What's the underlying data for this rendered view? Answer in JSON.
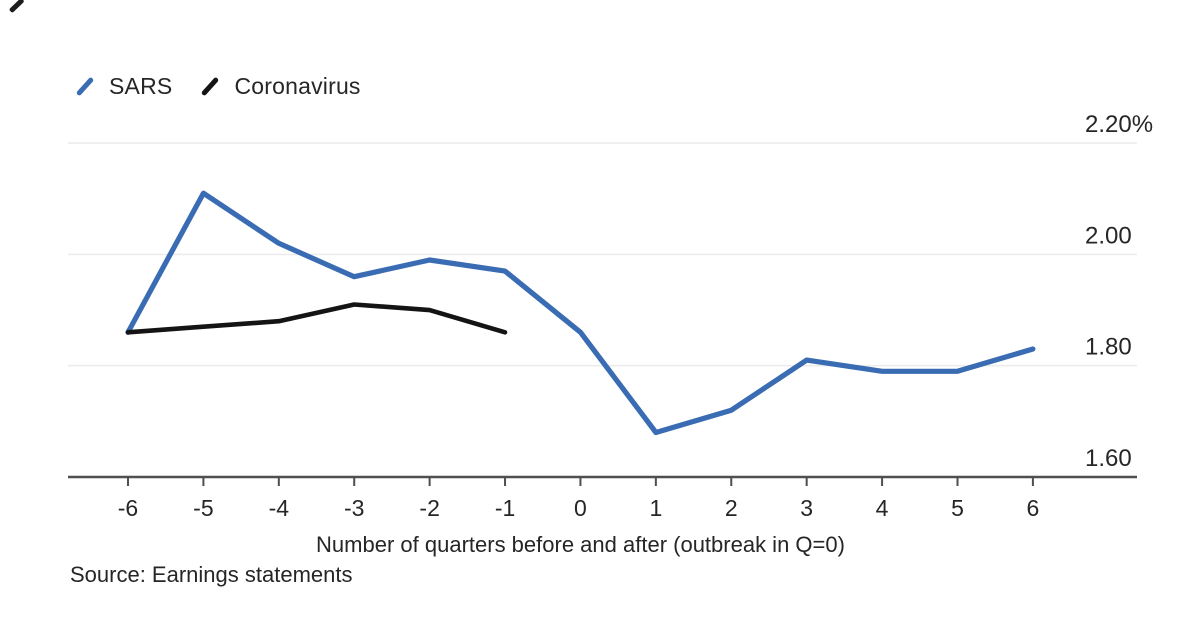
{
  "legend": {
    "items": [
      {
        "label": "SARS",
        "color": "#3a6cb3"
      },
      {
        "label": "Coronavirus",
        "color": "#141414"
      }
    ]
  },
  "chart_data": {
    "type": "line",
    "x": [
      -6,
      -5,
      -4,
      -3,
      -2,
      -1,
      0,
      1,
      2,
      3,
      4,
      5,
      6
    ],
    "x_tick_labels": [
      "-6",
      "-5",
      "-4",
      "-3",
      "-2",
      "-1",
      "0",
      "1",
      "2",
      "3",
      "4",
      "5",
      "6"
    ],
    "series": [
      {
        "name": "SARS",
        "color": "#3a6cb3",
        "stroke_width": 5.2,
        "values": [
          1.86,
          2.11,
          2.02,
          1.96,
          1.99,
          1.97,
          1.86,
          1.68,
          1.72,
          1.81,
          1.79,
          1.79,
          1.83
        ]
      },
      {
        "name": "Coronavirus",
        "color": "#141414",
        "stroke_width": 4.6,
        "values": [
          1.86,
          1.87,
          1.88,
          1.91,
          1.9,
          1.86,
          null,
          null,
          null,
          null,
          null,
          null,
          null
        ]
      }
    ],
    "xlabel": "Number of quarters before and after (outbreak in Q=0)",
    "ylabel": "",
    "y_ticks": [
      {
        "value": 2.2,
        "label": "2.20%"
      },
      {
        "value": 2.0,
        "label": "2.00"
      },
      {
        "value": 1.8,
        "label": "1.80"
      },
      {
        "value": 1.6,
        "label": "1.60"
      }
    ],
    "ylim": [
      1.6,
      2.2
    ],
    "xlim": [
      -6,
      6
    ],
    "grid": "horizontal",
    "legend_position": "top-left"
  },
  "footer": {
    "source": "Source: Earnings statements"
  }
}
